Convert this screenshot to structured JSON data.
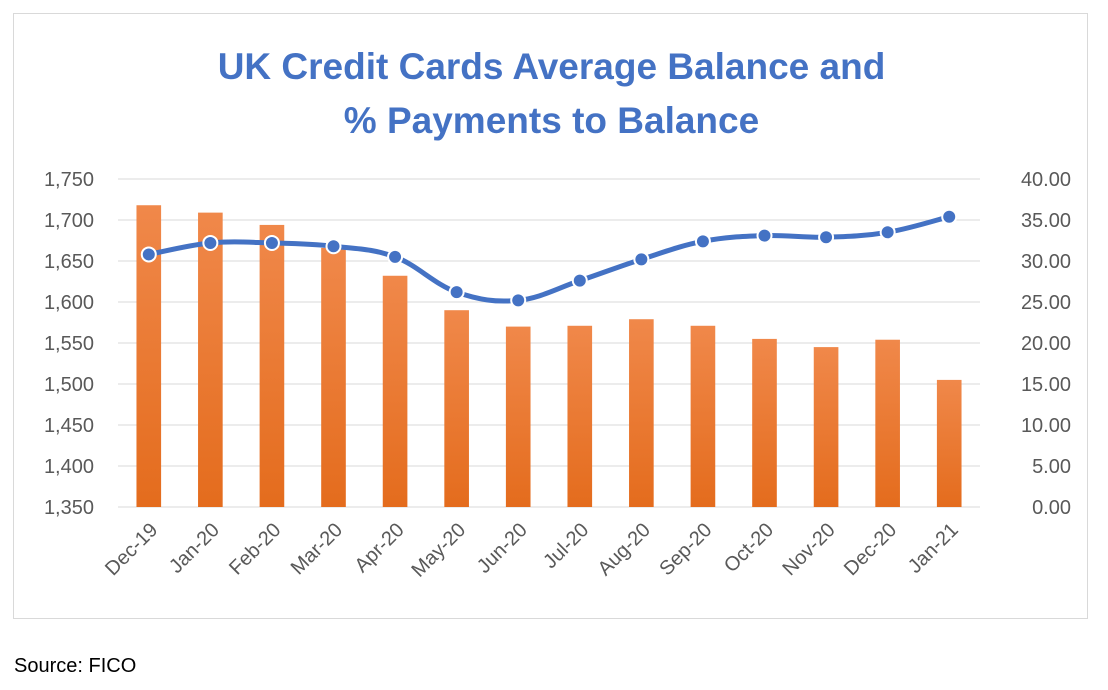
{
  "chart_data": {
    "type": "bar",
    "title_lines": [
      "UK Credit Cards Average Balance and",
      "% Payments to Balance"
    ],
    "categories": [
      "Dec-19",
      "Jan-20",
      "Feb-20",
      "Mar-20",
      "Apr-20",
      "May-20",
      "Jun-20",
      "Jul-20",
      "Aug-20",
      "Sep-20",
      "Oct-20",
      "Nov-20",
      "Dec-20",
      "Jan-21"
    ],
    "series": [
      {
        "type": "bar",
        "axis": "left",
        "values": [
          1718,
          1709,
          1694,
          1666,
          1632,
          1590,
          1570,
          1571,
          1579,
          1571,
          1555,
          1545,
          1554,
          1505
        ]
      },
      {
        "type": "line",
        "axis": "right",
        "values": [
          30.8,
          32.2,
          32.2,
          31.8,
          30.5,
          26.2,
          25.2,
          27.6,
          30.2,
          32.4,
          33.1,
          32.9,
          33.5,
          35.4
        ]
      }
    ],
    "left_axis": {
      "min": 1350,
      "max": 1750,
      "step": 50,
      "tick_labels": [
        "1,350",
        "1,400",
        "1,450",
        "1,500",
        "1,550",
        "1,600",
        "1,650",
        "1,700",
        "1,750"
      ]
    },
    "right_axis": {
      "min": 0,
      "max": 40,
      "step": 5,
      "tick_labels": [
        "0.00",
        "5.00",
        "10.00",
        "15.00",
        "20.00",
        "25.00",
        "30.00",
        "35.00",
        "40.00"
      ]
    },
    "grid": true,
    "legend": "none",
    "colors": {
      "bar_top": "#f0884a",
      "bar_bottom": "#e46c1d",
      "line": "#4472c4",
      "title": "#4472c4",
      "grid": "#d9d9d9",
      "ticks": "#595959"
    }
  },
  "source_note": "Source: FICO"
}
